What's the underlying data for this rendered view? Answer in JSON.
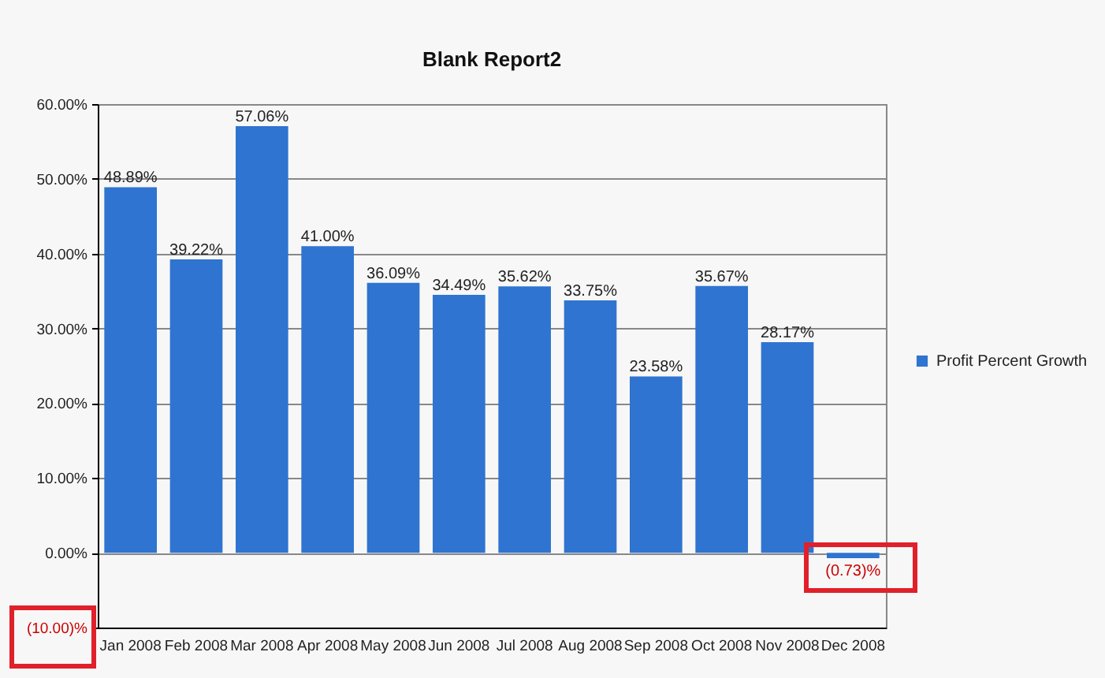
{
  "chart_data": {
    "type": "bar",
    "title": "Blank Report2",
    "categories": [
      "Jan 2008",
      "Feb 2008",
      "Mar 2008",
      "Apr 2008",
      "May 2008",
      "Jun 2008",
      "Jul 2008",
      "Aug 2008",
      "Sep 2008",
      "Oct 2008",
      "Nov 2008",
      "Dec 2008"
    ],
    "series": [
      {
        "name": "Profit Percent Growth",
        "color": "#2f74d0",
        "values": [
          48.89,
          39.22,
          57.06,
          41.0,
          36.09,
          34.49,
          35.62,
          33.75,
          23.58,
          35.67,
          28.17,
          -0.73
        ],
        "value_labels": [
          "48.89%",
          "39.22%",
          "57.06%",
          "41.00%",
          "36.09%",
          "34.49%",
          "35.62%",
          "33.75%",
          "23.58%",
          "35.67%",
          "28.17%",
          "(0.73)%"
        ]
      }
    ],
    "ylim": [
      -10,
      60
    ],
    "yticks": [
      {
        "value": -10,
        "label": "(10.00)%"
      },
      {
        "value": 0,
        "label": "0.00%"
      },
      {
        "value": 10,
        "label": "10.00%"
      },
      {
        "value": 20,
        "label": "20.00%"
      },
      {
        "value": 30,
        "label": "30.00%"
      },
      {
        "value": 40,
        "label": "40.00%"
      },
      {
        "value": 50,
        "label": "50.00%"
      },
      {
        "value": 60,
        "label": "60.00%"
      }
    ],
    "grid": "y",
    "legend": "right"
  }
}
